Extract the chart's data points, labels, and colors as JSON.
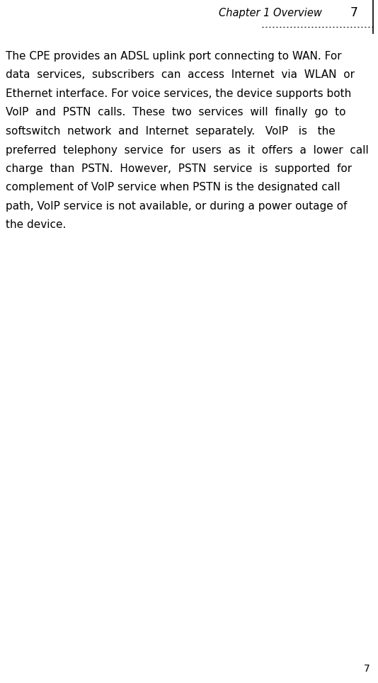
{
  "bg_color": "#ffffff",
  "header_text": "Chapter 1 Overview",
  "header_page": "7",
  "header_font_size": 10.5,
  "body_font_size": 11.0,
  "footer_font_size": 10,
  "text_color": "#000000",
  "body_lines": [
    "The CPE provides an ADSL uplink port connecting to WAN. For",
    "data  services,  subscribers  can  access  Internet  via  WLAN  or",
    "Ethernet interface. For voice services, the device supports both",
    "VoIP  and  PSTN  calls.  These  two  services  will  finally  go  to",
    "softswitch  network  and  Internet  separately.   VoIP   is   the",
    "preferred  telephony  service  for  users  as  it  offers  a  lower  call",
    "charge  than  PSTN.  However,  PSTN  service  is  supported  for",
    "complement of VoIP service when PSTN is the designated call",
    "path, VoIP service is not available, or during a power outage of",
    "the device."
  ]
}
